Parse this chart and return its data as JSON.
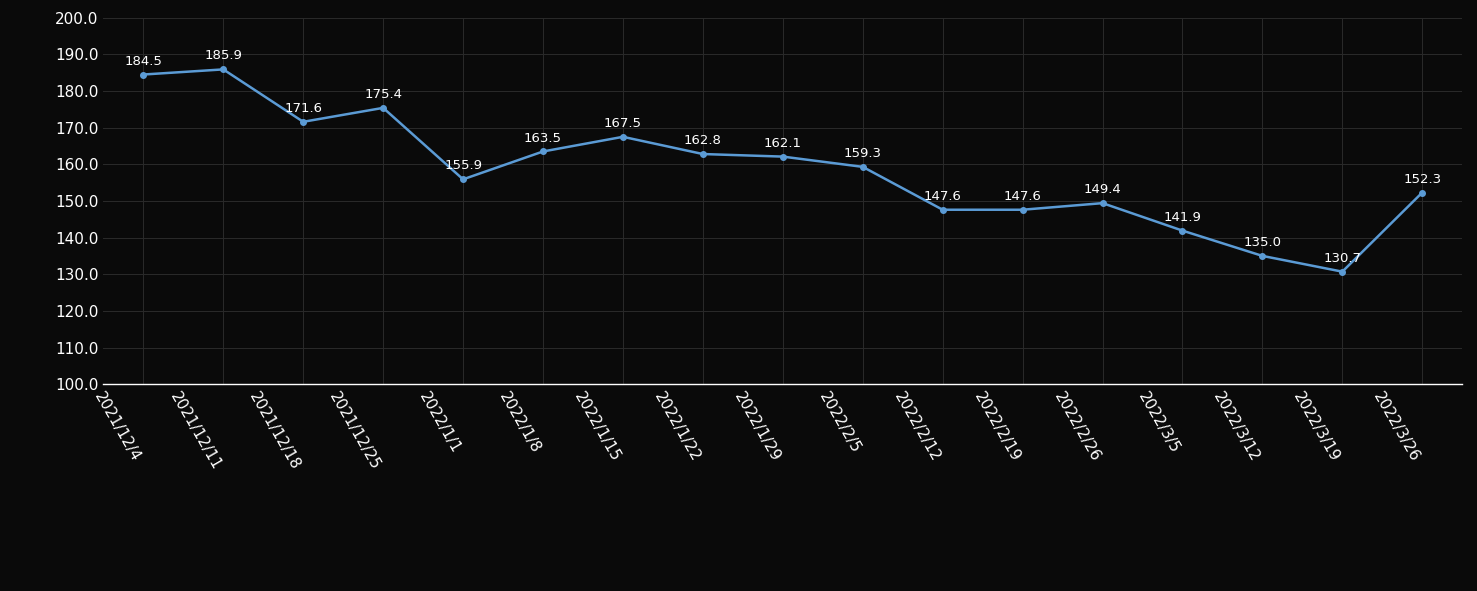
{
  "dates": [
    "2021/12/4",
    "2021/12/11",
    "2021/12/18",
    "2021/12/25",
    "2022/1/1",
    "2022/1/8",
    "2022/1/15",
    "2022/1/22",
    "2022/1/29",
    "2022/2/5",
    "2022/2/12",
    "2022/2/19",
    "2022/2/26",
    "2022/3/5",
    "2022/3/12",
    "2022/3/19",
    "2022/3/26"
  ],
  "values": [
    184.5,
    185.9,
    171.6,
    175.4,
    155.9,
    163.5,
    167.5,
    162.8,
    162.1,
    159.3,
    147.6,
    147.6,
    149.4,
    141.9,
    135.0,
    130.7,
    152.3
  ],
  "line_color": "#5B9BD5",
  "marker_color": "#5B9BD5",
  "background_color": "#0a0a0a",
  "text_color": "#FFFFFF",
  "grid_color": "#2a2a2a",
  "spine_color": "#FFFFFF",
  "ylim": [
    100.0,
    200.0
  ],
  "yticks": [
    100.0,
    110.0,
    120.0,
    130.0,
    140.0,
    150.0,
    160.0,
    170.0,
    180.0,
    190.0,
    200.0
  ],
  "label_fontsize": 9.5,
  "tick_fontsize": 11.0,
  "xlabel_rotation": -60
}
